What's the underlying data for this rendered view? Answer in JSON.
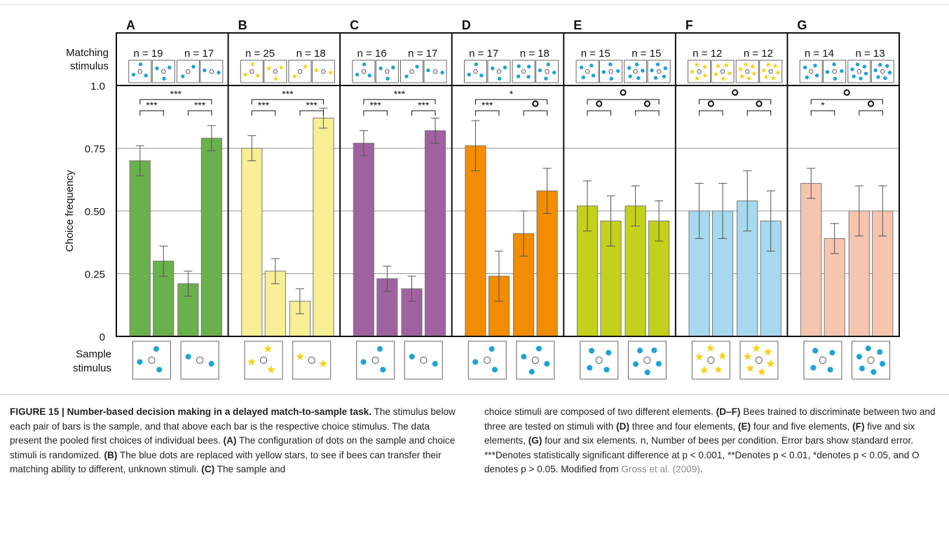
{
  "chart_data": {
    "type": "bar",
    "ylabel": "Choice frequency",
    "ylim": [
      0,
      1.0
    ],
    "yticks": [
      "0",
      "0.25",
      "0.50",
      "0.75",
      "1.0"
    ],
    "row_labels": {
      "matching": [
        "Matching",
        "stimulus"
      ],
      "sample": [
        "Sample",
        "stimulus"
      ]
    },
    "panels": [
      {
        "letter": "A",
        "n": [
          "n = 19",
          "n = 17"
        ],
        "color": "#6ab04c",
        "values": [
          0.7,
          0.3,
          0.21,
          0.79
        ],
        "errors": [
          0.06,
          0.06,
          0.05,
          0.05
        ],
        "sig_top": "***",
        "sig_left": "***",
        "sig_right": "***",
        "dot_color": "#1fa2d9",
        "dot_shape": "dot",
        "sample_counts": [
          3,
          2
        ]
      },
      {
        "letter": "B",
        "n": [
          "n = 25",
          "n = 18"
        ],
        "color": "#f7ee96",
        "values": [
          0.75,
          0.26,
          0.14,
          0.87
        ],
        "errors": [
          0.05,
          0.05,
          0.05,
          0.04
        ],
        "sig_top": "***",
        "sig_left": "***",
        "sig_right": "***",
        "dot_color": "#f2d41f",
        "dot_shape": "star",
        "sample_counts": [
          3,
          2
        ]
      },
      {
        "letter": "C",
        "n": [
          "n = 16",
          "n = 17"
        ],
        "color": "#a0629e",
        "values": [
          0.77,
          0.23,
          0.19,
          0.82
        ],
        "errors": [
          0.05,
          0.05,
          0.05,
          0.05
        ],
        "sig_top": "***",
        "sig_left": "***",
        "sig_right": "***",
        "dot_color": "#1fa2d9",
        "dot_shape": "dot",
        "sample_counts": [
          3,
          2
        ]
      },
      {
        "letter": "D",
        "n": [
          "n = 17",
          "n = 18"
        ],
        "color": "#f28c00",
        "values": [
          0.76,
          0.24,
          0.41,
          0.58
        ],
        "errors": [
          0.1,
          0.1,
          0.09,
          0.09
        ],
        "sig_top": "*",
        "sig_left": "***",
        "sig_right": "o",
        "dot_color": "#1fa2d9",
        "dot_shape": "dot",
        "sample_counts": [
          3,
          4
        ]
      },
      {
        "letter": "E",
        "n": [
          "n = 15",
          "n = 15"
        ],
        "color": "#c3d01c",
        "values": [
          0.52,
          0.46,
          0.52,
          0.46
        ],
        "errors": [
          0.1,
          0.1,
          0.08,
          0.08
        ],
        "sig_top": "o",
        "sig_left": "o",
        "sig_right": "o",
        "dot_color": "#1fa2d9",
        "dot_shape": "dot",
        "sample_counts": [
          4,
          5
        ]
      },
      {
        "letter": "F",
        "n": [
          "n = 12",
          "n = 12"
        ],
        "color": "#a6d8ee",
        "values": [
          0.5,
          0.5,
          0.54,
          0.46
        ],
        "errors": [
          0.11,
          0.11,
          0.12,
          0.12
        ],
        "sig_top": "o",
        "sig_left": "o",
        "sig_right": "o",
        "dot_color": "#f2d41f",
        "dot_shape": "star",
        "sample_counts": [
          5,
          6
        ]
      },
      {
        "letter": "G",
        "n": [
          "n = 14",
          "n = 13"
        ],
        "color": "#f7c4b0",
        "values": [
          0.61,
          0.39,
          0.5,
          0.5
        ],
        "errors": [
          0.06,
          0.06,
          0.1,
          0.1
        ],
        "sig_top": "o",
        "sig_left": "*",
        "sig_right": "o",
        "dot_color": "#1fa2d9",
        "dot_shape": "dot",
        "sample_counts": [
          4,
          6
        ]
      }
    ]
  },
  "caption": {
    "label": "FIGURE 15 | Number-based decision making in a delayed match-to-sample task.",
    "left_text_1": " The stimulus below each pair of bars is the sample, and that above each bar is the respective choice stimulus. The data present the pooled first choices of individual bees. ",
    "tag_a": "(A)",
    "left_text_2": " The configuration of dots on the sample and choice stimuli is randomized. ",
    "tag_b": "(B)",
    "left_text_3": " The blue dots are replaced with yellow stars, to see if bees can transfer their matching ability to different, unknown stimuli. ",
    "tag_c": "(C)",
    "left_text_4": " The sample and",
    "right_text_1": "choice stimuli are composed of two different elements. ",
    "tag_df": "(D–F)",
    "right_text_2": " Bees trained to discriminate between two and three are tested on stimuli with ",
    "tag_d": "(D)",
    "right_text_3": " three and four elements, ",
    "tag_e": "(E)",
    "right_text_4": " four and five elements, ",
    "tag_f": "(F)",
    "right_text_5": " five and six elements, ",
    "tag_g": "(G)",
    "right_text_6": " four and six elements. n, Number of bees per condition. Error bars show standard error. ***Denotes statistically significant difference at p < 0.001, **Denotes p < 0.01, *denotes p < 0.05, and O denotes p > 0.05. Modified from ",
    "citation": "Gross et al. (2009)",
    "right_text_end": "."
  }
}
